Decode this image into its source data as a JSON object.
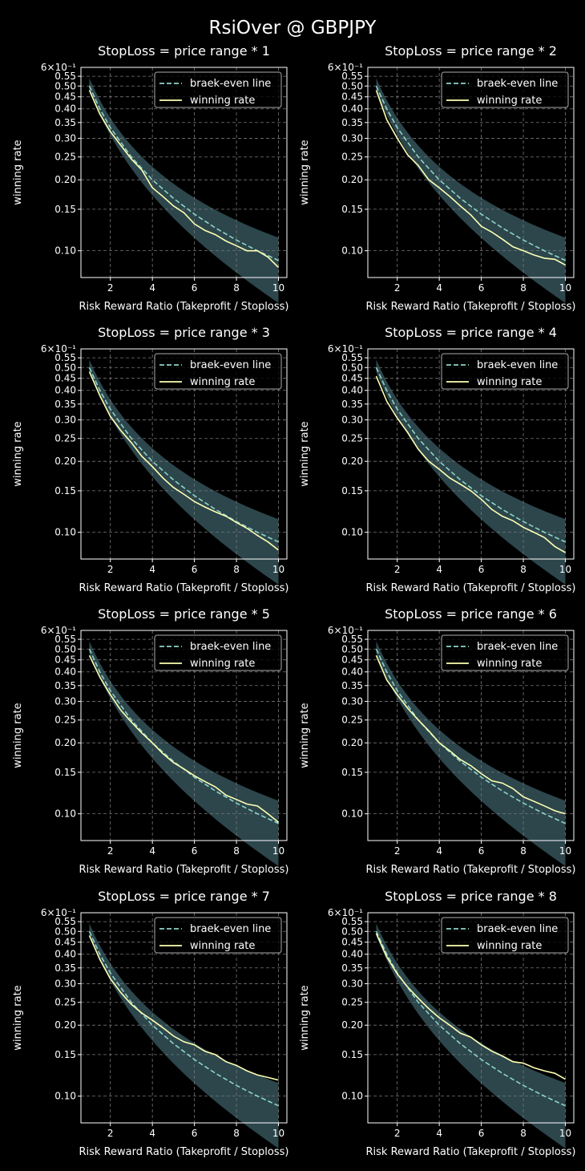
{
  "figure": {
    "title": "RsiOver @ GBPJPY",
    "colors": {
      "background": "#000000",
      "breakeven": "#8dd3c7",
      "winning": "#feffb3",
      "band": "#2e4a50",
      "grid": "#777777",
      "axes": "#ffffff"
    }
  },
  "chart_data": [
    {
      "type": "line",
      "title": "StopLoss = price range * 1",
      "xlabel": "Risk Reward Ratio (Takeprofit / Stoploss)",
      "ylabel": "winning rate",
      "yscale": "log",
      "xlim": [
        0.6,
        10.4
      ],
      "ylim": [
        0.077,
        0.6
      ],
      "xticks": [
        "2",
        "4",
        "6",
        "8",
        "10"
      ],
      "yticks": [
        "0.10",
        "0.15",
        "0.20",
        "0.25",
        "0.30",
        "0.35",
        "0.40",
        "0.45",
        "0.50",
        "0.55"
      ],
      "ytick_top": "6×10⁻¹",
      "grid": true,
      "legend_position": "top-right",
      "band": {
        "x": [
          1,
          10
        ],
        "description": "shaded region around break-even line"
      },
      "series": [
        {
          "name": "braek-even line",
          "style": "dashed",
          "x": [
            1,
            1.5,
            2,
            3,
            4,
            5,
            6,
            7,
            8,
            9,
            10
          ],
          "y": [
            0.5,
            0.4,
            0.333,
            0.25,
            0.2,
            0.167,
            0.143,
            0.125,
            0.111,
            0.1,
            0.091
          ]
        },
        {
          "name": "winning rate",
          "style": "solid",
          "x": [
            1,
            1.5,
            2,
            2.5,
            3,
            3.5,
            4,
            4.5,
            5,
            5.5,
            6,
            6.5,
            7,
            7.5,
            8,
            8.5,
            9,
            9.5,
            10
          ],
          "y": [
            0.48,
            0.38,
            0.32,
            0.28,
            0.245,
            0.22,
            0.185,
            0.17,
            0.155,
            0.145,
            0.13,
            0.122,
            0.117,
            0.11,
            0.105,
            0.1,
            0.1,
            0.094,
            0.085
          ]
        }
      ]
    },
    {
      "type": "line",
      "title": "StopLoss = price range * 2",
      "xlabel": "Risk Reward Ratio (Takeprofit / Stoploss)",
      "ylabel": "winning rate",
      "yscale": "log",
      "xlim": [
        0.6,
        10.4
      ],
      "ylim": [
        0.077,
        0.6
      ],
      "xticks": [
        "2",
        "4",
        "6",
        "8",
        "10"
      ],
      "yticks": [
        "0.10",
        "0.15",
        "0.20",
        "0.25",
        "0.30",
        "0.35",
        "0.40",
        "0.45",
        "0.50",
        "0.55"
      ],
      "ytick_top": "6×10⁻¹",
      "grid": true,
      "legend_position": "top-right",
      "band": {
        "x": [
          1,
          10
        ],
        "description": "shaded region around break-even line"
      },
      "series": [
        {
          "name": "braek-even line",
          "style": "dashed",
          "x": [
            1,
            1.5,
            2,
            3,
            4,
            5,
            6,
            7,
            8,
            9,
            10
          ],
          "y": [
            0.5,
            0.4,
            0.333,
            0.25,
            0.2,
            0.167,
            0.143,
            0.125,
            0.111,
            0.1,
            0.091
          ]
        },
        {
          "name": "winning rate",
          "style": "solid",
          "x": [
            1,
            1.5,
            2,
            2.5,
            3,
            3.5,
            4,
            4.5,
            5,
            5.5,
            6,
            6.5,
            7,
            7.5,
            8,
            8.5,
            9,
            9.5,
            10
          ],
          "y": [
            0.48,
            0.36,
            0.3,
            0.255,
            0.23,
            0.2,
            0.185,
            0.17,
            0.155,
            0.142,
            0.127,
            0.12,
            0.112,
            0.104,
            0.1,
            0.096,
            0.093,
            0.092,
            0.087
          ]
        }
      ]
    },
    {
      "type": "line",
      "title": "StopLoss = price range * 3",
      "xlabel": "Risk Reward Ratio (Takeprofit / Stoploss)",
      "ylabel": "winning rate",
      "yscale": "log",
      "xlim": [
        0.6,
        10.4
      ],
      "ylim": [
        0.077,
        0.6
      ],
      "xticks": [
        "2",
        "4",
        "6",
        "8",
        "10"
      ],
      "yticks": [
        "0.10",
        "0.15",
        "0.20",
        "0.25",
        "0.30",
        "0.35",
        "0.40",
        "0.45",
        "0.50",
        "0.55"
      ],
      "ytick_top": "6×10⁻¹",
      "grid": true,
      "legend_position": "top-right",
      "band": {
        "x": [
          1,
          10
        ],
        "description": "shaded region around break-even line"
      },
      "series": [
        {
          "name": "braek-even line",
          "style": "dashed",
          "x": [
            1,
            1.5,
            2,
            3,
            4,
            5,
            6,
            7,
            8,
            9,
            10
          ],
          "y": [
            0.5,
            0.4,
            0.333,
            0.25,
            0.2,
            0.167,
            0.143,
            0.125,
            0.111,
            0.1,
            0.091
          ]
        },
        {
          "name": "winning rate",
          "style": "solid",
          "x": [
            1,
            1.5,
            2,
            2.5,
            3,
            3.5,
            4,
            4.5,
            5,
            5.5,
            6,
            6.5,
            7,
            7.5,
            8,
            8.5,
            9,
            9.5,
            10
          ],
          "y": [
            0.48,
            0.38,
            0.31,
            0.27,
            0.24,
            0.21,
            0.19,
            0.17,
            0.155,
            0.145,
            0.135,
            0.128,
            0.122,
            0.117,
            0.11,
            0.104,
            0.097,
            0.091,
            0.084
          ]
        }
      ]
    },
    {
      "type": "line",
      "title": "StopLoss = price range * 4",
      "xlabel": "Risk Reward Ratio (Takeprofit / Stoploss)",
      "ylabel": "winning rate",
      "yscale": "log",
      "xlim": [
        0.6,
        10.4
      ],
      "ylim": [
        0.077,
        0.6
      ],
      "xticks": [
        "2",
        "4",
        "6",
        "8",
        "10"
      ],
      "yticks": [
        "0.10",
        "0.15",
        "0.20",
        "0.25",
        "0.30",
        "0.35",
        "0.40",
        "0.45",
        "0.50",
        "0.55"
      ],
      "ytick_top": "6×10⁻¹",
      "grid": true,
      "legend_position": "top-right",
      "band": {
        "x": [
          1,
          10
        ],
        "description": "shaded region around break-even line"
      },
      "series": [
        {
          "name": "braek-even line",
          "style": "dashed",
          "x": [
            1,
            1.5,
            2,
            3,
            4,
            5,
            6,
            7,
            8,
            9,
            10
          ],
          "y": [
            0.5,
            0.4,
            0.333,
            0.25,
            0.2,
            0.167,
            0.143,
            0.125,
            0.111,
            0.1,
            0.091
          ]
        },
        {
          "name": "winning rate",
          "style": "solid",
          "x": [
            1,
            1.5,
            2,
            2.5,
            3,
            3.5,
            4,
            4.5,
            5,
            5.5,
            6,
            6.5,
            7,
            7.5,
            8,
            8.5,
            9,
            9.5,
            10
          ],
          "y": [
            0.46,
            0.36,
            0.305,
            0.265,
            0.225,
            0.2,
            0.185,
            0.17,
            0.16,
            0.15,
            0.138,
            0.125,
            0.117,
            0.112,
            0.105,
            0.1,
            0.095,
            0.087,
            0.082
          ]
        }
      ]
    },
    {
      "type": "line",
      "title": "StopLoss = price range * 5",
      "xlabel": "Risk Reward Ratio (Takeprofit / Stoploss)",
      "ylabel": "winning rate",
      "yscale": "log",
      "xlim": [
        0.6,
        10.4
      ],
      "ylim": [
        0.077,
        0.6
      ],
      "xticks": [
        "2",
        "4",
        "6",
        "8",
        "10"
      ],
      "yticks": [
        "0.10",
        "0.15",
        "0.20",
        "0.25",
        "0.30",
        "0.35",
        "0.40",
        "0.45",
        "0.50",
        "0.55"
      ],
      "ytick_top": "6×10⁻¹",
      "grid": true,
      "legend_position": "top-right",
      "band": {
        "x": [
          1,
          10
        ],
        "description": "shaded region around break-even line"
      },
      "series": [
        {
          "name": "braek-even line",
          "style": "dashed",
          "x": [
            1,
            1.5,
            2,
            3,
            4,
            5,
            6,
            7,
            8,
            9,
            10
          ],
          "y": [
            0.5,
            0.4,
            0.333,
            0.25,
            0.2,
            0.167,
            0.143,
            0.125,
            0.111,
            0.1,
            0.091
          ]
        },
        {
          "name": "winning rate",
          "style": "solid",
          "x": [
            1,
            1.5,
            2,
            2.5,
            3,
            3.5,
            4,
            4.5,
            5,
            5.5,
            6,
            6.5,
            7,
            7.5,
            8,
            8.5,
            9,
            9.5,
            10
          ],
          "y": [
            0.47,
            0.38,
            0.32,
            0.275,
            0.245,
            0.22,
            0.2,
            0.18,
            0.165,
            0.155,
            0.145,
            0.137,
            0.13,
            0.12,
            0.115,
            0.11,
            0.108,
            0.1,
            0.092
          ]
        }
      ]
    },
    {
      "type": "line",
      "title": "StopLoss = price range * 6",
      "xlabel": "Risk Reward Ratio (Takeprofit / Stoploss)",
      "ylabel": "winning rate",
      "yscale": "log",
      "xlim": [
        0.6,
        10.4
      ],
      "ylim": [
        0.077,
        0.6
      ],
      "xticks": [
        "2",
        "4",
        "6",
        "8",
        "10"
      ],
      "yticks": [
        "0.10",
        "0.15",
        "0.20",
        "0.25",
        "0.30",
        "0.35",
        "0.40",
        "0.45",
        "0.50",
        "0.55"
      ],
      "ytick_top": "6×10⁻¹",
      "grid": true,
      "legend_position": "top-right",
      "band": {
        "x": [
          1,
          10
        ],
        "description": "shaded region around break-even line"
      },
      "series": [
        {
          "name": "braek-even line",
          "style": "dashed",
          "x": [
            1,
            1.5,
            2,
            3,
            4,
            5,
            6,
            7,
            8,
            9,
            10
          ],
          "y": [
            0.5,
            0.4,
            0.333,
            0.25,
            0.2,
            0.167,
            0.143,
            0.125,
            0.111,
            0.1,
            0.091
          ]
        },
        {
          "name": "winning rate",
          "style": "solid",
          "x": [
            1,
            1.5,
            2,
            2.5,
            3,
            3.5,
            4,
            4.5,
            5,
            5.5,
            6,
            6.5,
            7,
            7.5,
            8,
            8.5,
            9,
            9.5,
            10
          ],
          "y": [
            0.47,
            0.37,
            0.32,
            0.28,
            0.25,
            0.225,
            0.2,
            0.185,
            0.17,
            0.16,
            0.148,
            0.138,
            0.135,
            0.128,
            0.118,
            0.113,
            0.108,
            0.103,
            0.1
          ]
        }
      ]
    },
    {
      "type": "line",
      "title": "StopLoss = price range * 7",
      "xlabel": "Risk Reward Ratio (Takeprofit / Stoploss)",
      "ylabel": "winning rate",
      "yscale": "log",
      "xlim": [
        0.6,
        10.4
      ],
      "ylim": [
        0.077,
        0.6
      ],
      "xticks": [
        "2",
        "4",
        "6",
        "8",
        "10"
      ],
      "yticks": [
        "0.10",
        "0.15",
        "0.20",
        "0.25",
        "0.30",
        "0.35",
        "0.40",
        "0.45",
        "0.50",
        "0.55"
      ],
      "ytick_top": "6×10⁻¹",
      "grid": true,
      "legend_position": "top-right",
      "band": {
        "x": [
          1,
          10
        ],
        "description": "shaded region around break-even line"
      },
      "series": [
        {
          "name": "braek-even line",
          "style": "dashed",
          "x": [
            1,
            1.5,
            2,
            3,
            4,
            5,
            6,
            7,
            8,
            9,
            10
          ],
          "y": [
            0.5,
            0.4,
            0.333,
            0.25,
            0.2,
            0.167,
            0.143,
            0.125,
            0.111,
            0.1,
            0.091
          ]
        },
        {
          "name": "winning rate",
          "style": "solid",
          "x": [
            1,
            1.5,
            2,
            2.5,
            3,
            3.5,
            4,
            4.5,
            5,
            5.5,
            6,
            6.5,
            7,
            7.5,
            8,
            8.5,
            9,
            9.5,
            10
          ],
          "y": [
            0.48,
            0.38,
            0.315,
            0.275,
            0.245,
            0.225,
            0.21,
            0.195,
            0.18,
            0.17,
            0.165,
            0.155,
            0.15,
            0.14,
            0.135,
            0.128,
            0.123,
            0.12,
            0.117
          ]
        }
      ]
    },
    {
      "type": "line",
      "title": "StopLoss = price range * 8",
      "xlabel": "Risk Reward Ratio (Takeprofit / Stoploss)",
      "ylabel": "winning rate",
      "yscale": "log",
      "xlim": [
        0.6,
        10.4
      ],
      "ylim": [
        0.077,
        0.6
      ],
      "xticks": [
        "2",
        "4",
        "6",
        "8",
        "10"
      ],
      "yticks": [
        "0.10",
        "0.15",
        "0.20",
        "0.25",
        "0.30",
        "0.35",
        "0.40",
        "0.45",
        "0.50",
        "0.55"
      ],
      "ytick_top": "6×10⁻¹",
      "grid": true,
      "legend_position": "top-right",
      "band": {
        "x": [
          1,
          10
        ],
        "description": "shaded region around break-even line"
      },
      "series": [
        {
          "name": "braek-even line",
          "style": "dashed",
          "x": [
            1,
            1.5,
            2,
            3,
            4,
            5,
            6,
            7,
            8,
            9,
            10
          ],
          "y": [
            0.5,
            0.4,
            0.333,
            0.25,
            0.2,
            0.167,
            0.143,
            0.125,
            0.111,
            0.1,
            0.091
          ]
        },
        {
          "name": "winning rate",
          "style": "solid",
          "x": [
            1,
            1.5,
            2,
            2.5,
            3,
            3.5,
            4,
            4.5,
            5,
            5.5,
            6,
            6.5,
            7,
            7.5,
            8,
            8.5,
            9,
            9.5,
            10
          ],
          "y": [
            0.49,
            0.39,
            0.33,
            0.29,
            0.26,
            0.235,
            0.215,
            0.2,
            0.185,
            0.178,
            0.165,
            0.155,
            0.148,
            0.14,
            0.138,
            0.132,
            0.128,
            0.125,
            0.118
          ]
        }
      ]
    }
  ]
}
